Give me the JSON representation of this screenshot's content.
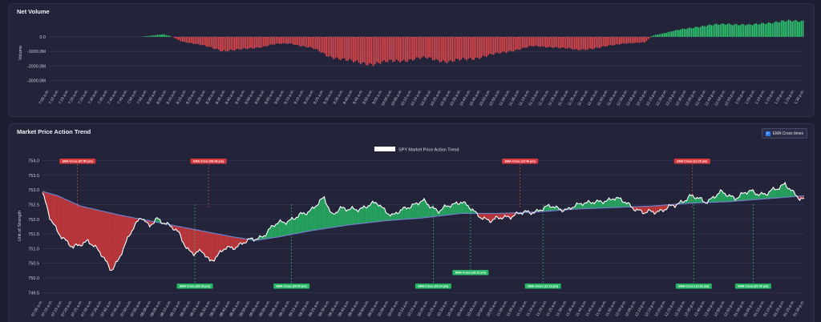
{
  "net_volume": {
    "title": "Net Volume",
    "chart_data": {
      "type": "bar",
      "ylabel": "Volume",
      "yticks": [
        "0.0",
        "-1000.0M",
        "-2000.0M",
        "-3000.0M"
      ],
      "ytick_values": [
        0,
        -1000,
        -2000,
        -3000
      ],
      "ylim": [
        -3350,
        1150
      ],
      "colors": {
        "positive": "#2ecc71",
        "negative": "#e0494d"
      },
      "time_labels": [
        "7:05 a.m.",
        "7:10 a.m.",
        "7:15 a.m.",
        "7:20 a.m.",
        "7:25 a.m.",
        "7:30 a.m.",
        "7:35 a.m.",
        "7:40 a.m.",
        "7:45 a.m.",
        "7:50 a.m.",
        "7:55 a.m.",
        "8:00 a.m.",
        "8:05 a.m.",
        "8:10 a.m.",
        "8:15 a.m.",
        "8:20 a.m.",
        "8:25 a.m.",
        "8:30 a.m.",
        "8:35 a.m.",
        "8:40 a.m.",
        "8:45 a.m.",
        "8:50 a.m.",
        "8:55 a.m.",
        "9:00 a.m.",
        "9:05 a.m.",
        "9:10 a.m.",
        "9:15 a.m.",
        "9:20 a.m.",
        "9:25 a.m.",
        "9:30 a.m.",
        "9:35 a.m.",
        "9:40 a.m.",
        "9:45 a.m.",
        "9:50 a.m.",
        "9:55 a.m.",
        "10:00 a.m.",
        "10:05 a.m.",
        "10:10 a.m.",
        "10:15 a.m.",
        "10:20 a.m.",
        "10:25 a.m.",
        "10:30 a.m.",
        "10:35 a.m.",
        "10:40 a.m.",
        "10:45 a.m.",
        "10:50 a.m.",
        "10:55 a.m.",
        "11:00 a.m.",
        "11:05 a.m.",
        "11:10 a.m.",
        "11:15 a.m.",
        "11:20 a.m.",
        "11:25 a.m.",
        "11:30 a.m.",
        "11:35 a.m.",
        "11:40 a.m.",
        "11:45 a.m.",
        "11:50 a.m.",
        "11:55 a.m.",
        "12:00 p.m.",
        "12:05 p.m.",
        "12:10 p.m.",
        "12:15 p.m.",
        "12:20 p.m.",
        "12:25 p.m.",
        "12:30 p.m.",
        "12:35 p.m.",
        "12:40 p.m.",
        "12:45 p.m.",
        "12:50 p.m.",
        "12:55 p.m.",
        "1:00 p.m.",
        "1:05 p.m.",
        "1:10 p.m.",
        "1:15 p.m.",
        "1:20 p.m.",
        "1:25 p.m.",
        "1:30 p.m."
      ],
      "keyframes": [
        [
          0,
          0
        ],
        [
          0.12,
          5
        ],
        [
          0.135,
          80
        ],
        [
          0.15,
          170
        ],
        [
          0.16,
          60
        ],
        [
          0.175,
          -300
        ],
        [
          0.2,
          -550
        ],
        [
          0.23,
          -950
        ],
        [
          0.25,
          -900
        ],
        [
          0.28,
          -700
        ],
        [
          0.3,
          -500
        ],
        [
          0.32,
          -450
        ],
        [
          0.35,
          -800
        ],
        [
          0.37,
          -1300
        ],
        [
          0.4,
          -1700
        ],
        [
          0.43,
          -1850
        ],
        [
          0.46,
          -1650
        ],
        [
          0.5,
          -1450
        ],
        [
          0.53,
          -1700
        ],
        [
          0.56,
          -1500
        ],
        [
          0.6,
          -1100
        ],
        [
          0.64,
          -650
        ],
        [
          0.67,
          -700
        ],
        [
          0.7,
          -900
        ],
        [
          0.73,
          -750
        ],
        [
          0.76,
          -450
        ],
        [
          0.79,
          -400
        ],
        [
          0.795,
          -150
        ],
        [
          0.8,
          80
        ],
        [
          0.83,
          420
        ],
        [
          0.86,
          700
        ],
        [
          0.9,
          900
        ],
        [
          0.93,
          800
        ],
        [
          0.95,
          950
        ],
        [
          0.97,
          1050
        ],
        [
          1.0,
          1100
        ]
      ]
    }
  },
  "trend": {
    "title": "Market Price Action Trend",
    "toggle_label": "EMA Cross times",
    "chart_data": {
      "type": "line",
      "legend": "SPY Market Price Action Trend",
      "legend_position": "top-center",
      "ylabel": "Unit of Strength",
      "yticks": [
        "754.0",
        "753.5",
        "753.0",
        "752.5",
        "752.0",
        "751.5",
        "751.0",
        "750.5",
        "750.0",
        "749.5"
      ],
      "ytick_values": [
        754.0,
        753.5,
        753.0,
        752.5,
        752.0,
        751.5,
        751.0,
        750.5,
        750.0,
        749.5
      ],
      "ylim": [
        749.4,
        754.15
      ],
      "colors": {
        "price": "#ffffff",
        "ema": "#6f7fc9",
        "bull_fill": "#27b865",
        "bear_fill": "#d6393c"
      },
      "time_labels": [
        "07:05 a.m.",
        "07:10 a.m.",
        "07:15 a.m.",
        "07:20 a.m.",
        "07:25 a.m.",
        "07:30 a.m.",
        "07:35 a.m.",
        "07:40 a.m.",
        "07:45 a.m.",
        "07:50 a.m.",
        "07:55 a.m.",
        "08:00 a.m.",
        "08:05 a.m.",
        "08:10 a.m.",
        "08:15 a.m.",
        "08:20 a.m.",
        "08:25 a.m.",
        "08:30 a.m.",
        "08:35 a.m.",
        "08:40 a.m.",
        "08:45 a.m.",
        "08:50 a.m.",
        "08:55 a.m.",
        "09:00 a.m.",
        "09:05 a.m.",
        "09:10 a.m.",
        "09:15 a.m.",
        "09:20 a.m.",
        "09:25 a.m.",
        "09:30 a.m.",
        "09:35 a.m.",
        "09:40 a.m.",
        "09:45 a.m.",
        "09:50 a.m.",
        "09:55 a.m.",
        "10:00 a.m.",
        "10:05 a.m.",
        "10:10 a.m.",
        "10:15 a.m.",
        "10:20 a.m.",
        "10:25 a.m.",
        "10:30 a.m.",
        "10:35 a.m.",
        "10:40 a.m.",
        "10:45 a.m.",
        "10:50 a.m.",
        "10:55 a.m.",
        "11:00 a.m.",
        "11:05 a.m.",
        "11:10 a.m.",
        "11:15 a.m.",
        "11:20 a.m.",
        "11:25 a.m.",
        "11:30 a.m.",
        "11:35 a.m.",
        "11:40 a.m.",
        "11:45 a.m.",
        "11:50 a.m.",
        "11:55 a.m.",
        "12:00 p.m.",
        "12:05 p.m.",
        "12:10 p.m.",
        "12:15 p.m.",
        "12:20 p.m.",
        "12:25 p.m.",
        "12:30 p.m.",
        "12:35 p.m.",
        "12:40 p.m.",
        "12:45 p.m.",
        "12:50 p.m.",
        "12:55 p.m.",
        "01:00 p.m.",
        "01:05 p.m.",
        "01:10 p.m.",
        "01:15 p.m.",
        "01:20 p.m.",
        "01:25 p.m.",
        "01:30 p.m."
      ],
      "price_keyframes": [
        [
          0,
          752.9
        ],
        [
          0.01,
          752.0
        ],
        [
          0.02,
          751.6
        ],
        [
          0.04,
          751.0
        ],
        [
          0.06,
          751.3
        ],
        [
          0.08,
          750.7
        ],
        [
          0.09,
          750.3
        ],
        [
          0.1,
          750.6
        ],
        [
          0.11,
          751.2
        ],
        [
          0.12,
          751.8
        ],
        [
          0.13,
          752.1
        ],
        [
          0.14,
          751.7
        ],
        [
          0.15,
          752.05
        ],
        [
          0.16,
          751.9
        ],
        [
          0.18,
          751.5
        ],
        [
          0.19,
          751.0
        ],
        [
          0.2,
          750.8
        ],
        [
          0.21,
          750.9
        ],
        [
          0.22,
          750.6
        ],
        [
          0.23,
          750.75
        ],
        [
          0.24,
          751.0
        ],
        [
          0.25,
          751.05
        ],
        [
          0.27,
          751.25
        ],
        [
          0.29,
          751.45
        ],
        [
          0.31,
          751.9
        ],
        [
          0.33,
          752.0
        ],
        [
          0.35,
          752.3
        ],
        [
          0.36,
          752.5
        ],
        [
          0.37,
          752.7
        ],
        [
          0.38,
          752.15
        ],
        [
          0.39,
          752.4
        ],
        [
          0.4,
          752.3
        ],
        [
          0.42,
          752.4
        ],
        [
          0.44,
          752.55
        ],
        [
          0.46,
          752.1
        ],
        [
          0.48,
          752.45
        ],
        [
          0.5,
          752.6
        ],
        [
          0.52,
          752.3
        ],
        [
          0.54,
          752.5
        ],
        [
          0.55,
          752.65
        ],
        [
          0.57,
          752.15
        ],
        [
          0.59,
          751.95
        ],
        [
          0.61,
          752.1
        ],
        [
          0.63,
          752.2
        ],
        [
          0.65,
          752.3
        ],
        [
          0.67,
          752.45
        ],
        [
          0.69,
          752.3
        ],
        [
          0.71,
          752.6
        ],
        [
          0.73,
          752.55
        ],
        [
          0.75,
          752.75
        ],
        [
          0.77,
          752.5
        ],
        [
          0.79,
          752.2
        ],
        [
          0.81,
          752.3
        ],
        [
          0.83,
          752.45
        ],
        [
          0.85,
          752.8
        ],
        [
          0.87,
          752.6
        ],
        [
          0.89,
          752.9
        ],
        [
          0.91,
          752.75
        ],
        [
          0.93,
          752.95
        ],
        [
          0.95,
          752.85
        ],
        [
          0.965,
          753.05
        ],
        [
          0.975,
          753.25
        ],
        [
          0.985,
          752.9
        ],
        [
          0.995,
          752.65
        ],
        [
          1.0,
          752.7
        ]
      ],
      "ema_keyframes": [
        [
          0,
          752.95
        ],
        [
          0.02,
          752.8
        ],
        [
          0.05,
          752.45
        ],
        [
          0.1,
          752.15
        ],
        [
          0.15,
          751.9
        ],
        [
          0.2,
          751.65
        ],
        [
          0.25,
          751.4
        ],
        [
          0.28,
          751.28
        ],
        [
          0.31,
          751.4
        ],
        [
          0.35,
          751.6
        ],
        [
          0.4,
          751.8
        ],
        [
          0.45,
          751.95
        ],
        [
          0.5,
          752.05
        ],
        [
          0.55,
          752.2
        ],
        [
          0.6,
          752.2
        ],
        [
          0.65,
          752.25
        ],
        [
          0.7,
          752.35
        ],
        [
          0.75,
          752.4
        ],
        [
          0.8,
          752.45
        ],
        [
          0.85,
          752.55
        ],
        [
          0.9,
          752.6
        ],
        [
          0.95,
          752.7
        ],
        [
          1.0,
          752.8
        ]
      ],
      "annotations_top": [
        {
          "label": "EMA Cross (07:50 pm)",
          "pos": 0.046
        },
        {
          "label": "EMA Cross (08:48 pm)",
          "pos": 0.218
        },
        {
          "label": "EMA Cross (10:46 pm)",
          "pos": 0.627
        },
        {
          "label": "EMA Cross (12:25 pm)",
          "pos": 0.853
        }
      ],
      "annotations_bottom": [
        {
          "label": "EMA Cross (08:18 pm)",
          "pos": 0.2,
          "row": 1
        },
        {
          "label": "EMA Cross (09:08 pm)",
          "pos": 0.327,
          "row": 1
        },
        {
          "label": "EMA Cross (10:14 pm)",
          "pos": 0.513,
          "row": 1
        },
        {
          "label": "EMA Cross (10:32 pm)",
          "pos": 0.562,
          "row": 0
        },
        {
          "label": "EMA Cross (11:13 pm)",
          "pos": 0.657,
          "row": 1
        },
        {
          "label": "EMA Cross (12:32 pm)",
          "pos": 0.855,
          "row": 1
        },
        {
          "label": "EMA Cross (01:03 pm)",
          "pos": 0.933,
          "row": 1
        }
      ]
    }
  }
}
